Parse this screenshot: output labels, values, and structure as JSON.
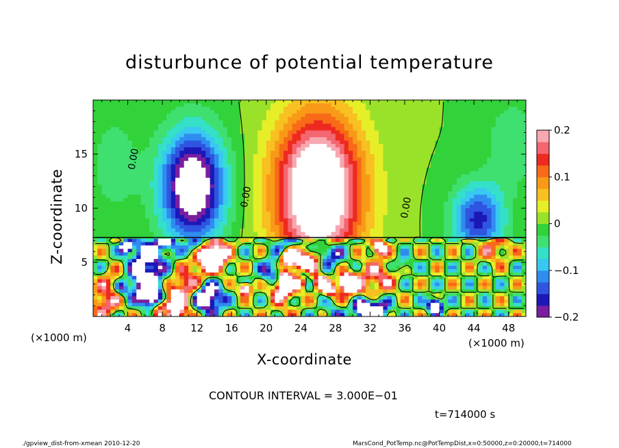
{
  "chart_data": {
    "type": "heatmap",
    "title": "disturbunce of potential temperature",
    "xlabel": "X-coordinate",
    "ylabel": "Z-coordinate",
    "x_unit_left": "(×1000 m)",
    "x_unit_right": "(×1000 m)",
    "xlim": [
      0,
      50
    ],
    "ylim": [
      0,
      20
    ],
    "x_ticks": [
      "4",
      "8",
      "12",
      "16",
      "20",
      "24",
      "28",
      "32",
      "36",
      "40",
      "44",
      "48"
    ],
    "x_tick_values": [
      4,
      8,
      12,
      16,
      20,
      24,
      28,
      32,
      36,
      40,
      44,
      48
    ],
    "y_ticks": [
      "5",
      "10",
      "15"
    ],
    "y_tick_values": [
      5,
      10,
      15
    ],
    "colorbar": {
      "range": [
        -0.2,
        0.2
      ],
      "labels": [
        "0.2",
        "0.1",
        "0",
        "−0.1",
        "−0.2"
      ],
      "label_values": [
        0.2,
        0.1,
        0,
        -0.1,
        -0.2
      ],
      "colors": [
        "#7a1fa0",
        "#1c18b8",
        "#2f55e0",
        "#2f8cf0",
        "#38c8f0",
        "#35e0c8",
        "#3fe070",
        "#32d23a",
        "#9ae22a",
        "#e6ee28",
        "#f8c020",
        "#f89a18",
        "#f86a18",
        "#ee2a20",
        "#f46670",
        "#f8a8b0"
      ]
    },
    "contour_labels": [
      {
        "text": "0.00",
        "x": 5.0,
        "z": 14.5
      },
      {
        "text": "0.00",
        "x": 18.0,
        "z": 11.0
      },
      {
        "text": "0.00",
        "x": 36.5,
        "z": 10.0
      }
    ],
    "anomalies": [
      {
        "x": 11.5,
        "z": 12.0,
        "sx": 3.6,
        "sz": 5.0,
        "amp": -0.26
      },
      {
        "x": 26.0,
        "z": 11.5,
        "sx": 5.0,
        "sz": 7.0,
        "amp": 0.3
      },
      {
        "x": 44.5,
        "z": 9.0,
        "sx": 3.0,
        "sz": 3.2,
        "amp": -0.16
      },
      {
        "x": 2.5,
        "z": 14.0,
        "sx": 3.0,
        "sz": 5.0,
        "amp": -0.04
      },
      {
        "x": 48.5,
        "z": 16.0,
        "sx": 3.0,
        "sz": 4.0,
        "amp": -0.05
      }
    ],
    "boundary_layer_top": 7.3
  },
  "contour_interval": "CONTOUR INTERVAL = 3.000E−01",
  "time_label": "t=714000 s",
  "footer_left": "./gpview_dist-from-xmean  2010-12-20",
  "footer_right": "MarsCond_PotTemp.nc@PotTempDist,x=0:50000,z=0:20000,t=714000"
}
